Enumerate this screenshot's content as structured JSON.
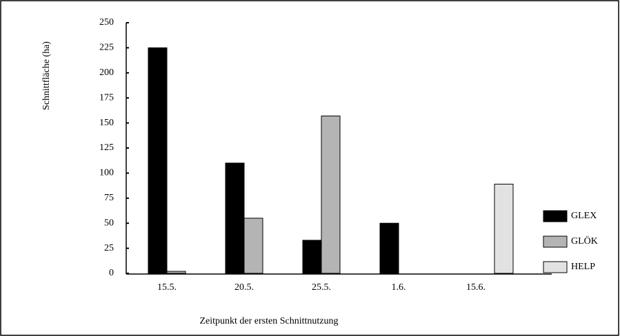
{
  "chart_data": {
    "type": "bar",
    "ylabel": "Schnittfläche (ha)",
    "xlabel": "Zeitpunkt der ersten Schnittnutzung",
    "categories": [
      "15.5.",
      "20.5.",
      "25.5.",
      "1.6.",
      "15.6."
    ],
    "series": [
      {
        "name": "GLEX",
        "color": "#000000",
        "values": [
          225,
          110,
          33,
          50,
          0
        ]
      },
      {
        "name": "GLÖK",
        "color": "#b4b4b4",
        "values": [
          2,
          55,
          157,
          0,
          0
        ]
      },
      {
        "name": "HELP",
        "color": "#e2e2e2",
        "values": [
          0,
          0,
          0,
          0,
          89
        ]
      }
    ],
    "ylim": [
      0,
      250
    ],
    "yticks": [
      0,
      25,
      50,
      75,
      100,
      125,
      150,
      175,
      200,
      225,
      250
    ],
    "legend": "right"
  }
}
